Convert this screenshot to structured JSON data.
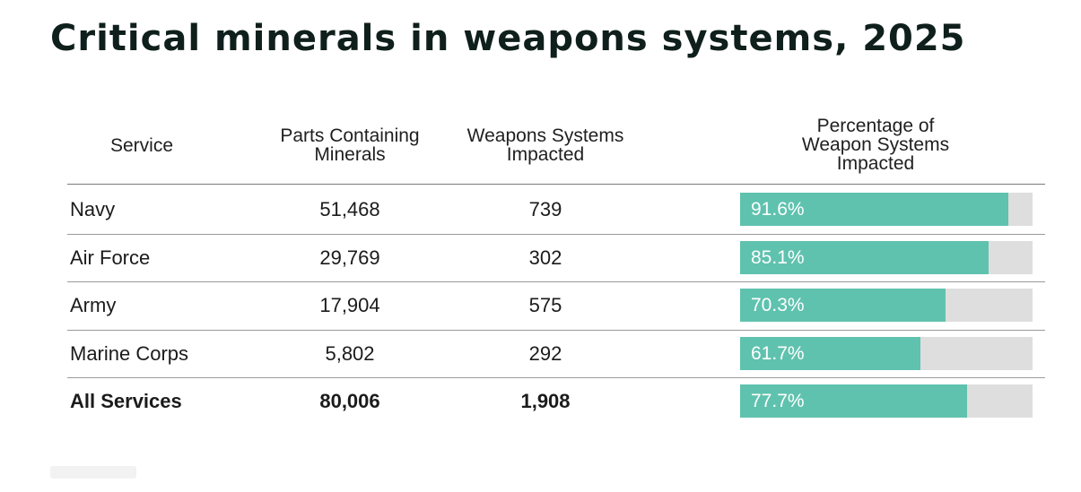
{
  "title": "Critical minerals in weapons systems, 2025",
  "headers": {
    "service": "Service",
    "parts": "Parts Containing\nMinerals",
    "weapons": "Weapons Systems\nImpacted",
    "pct": "Percentage of\nWeapon Systems\nImpacted"
  },
  "chart_data": {
    "type": "table",
    "title": "Critical minerals in weapons systems, 2025",
    "columns": [
      "Service",
      "Parts Containing Minerals",
      "Weapons Systems Impacted",
      "Percentage of Weapon Systems Impacted"
    ],
    "rows": [
      {
        "service": "Navy",
        "parts": "51,468",
        "weapons": "739",
        "pct": 91.6,
        "pct_label": "91.6%",
        "bold": false
      },
      {
        "service": "Air Force",
        "parts": "29,769",
        "weapons": "302",
        "pct": 85.1,
        "pct_label": "85.1%",
        "bold": false
      },
      {
        "service": "Army",
        "parts": "17,904",
        "weapons": "575",
        "pct": 70.3,
        "pct_label": "70.3%",
        "bold": false
      },
      {
        "service": "Marine Corps",
        "parts": "5,802",
        "weapons": "292",
        "pct": 61.7,
        "pct_label": "61.7%",
        "bold": false
      },
      {
        "service": "All Services",
        "parts": "80,006",
        "weapons": "1,908",
        "pct": 77.7,
        "pct_label": "77.7%",
        "bold": true
      }
    ],
    "bar_color": "#5fc2ae",
    "track_color": "#dedede",
    "pct_scale": [
      0,
      100
    ]
  }
}
